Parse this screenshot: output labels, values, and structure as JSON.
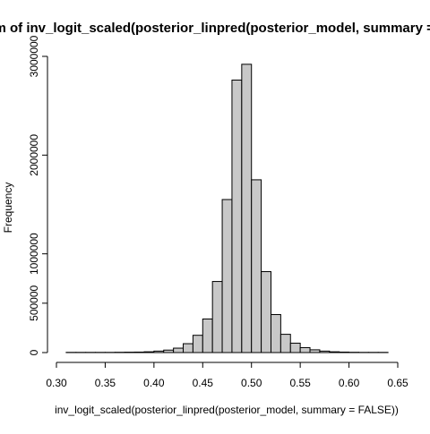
{
  "chart_data": {
    "type": "bar",
    "title": "Histogram of inv_logit_scaled(posterior_linpred(posterior_model, summary = FALSE))",
    "xlabel": "inv_logit_scaled(posterior_linpred(posterior_model, summary = FALSE))",
    "ylabel": "Frequency",
    "xlim": [
      0.3,
      0.65
    ],
    "ylim": [
      0,
      3000000
    ],
    "x_ticks": [
      0.3,
      0.35,
      0.4,
      0.45,
      0.5,
      0.55,
      0.6,
      0.65
    ],
    "x_tick_labels": [
      "0.30",
      "0.35",
      "0.40",
      "0.45",
      "0.50",
      "0.55",
      "0.60",
      "0.65"
    ],
    "y_ticks": [
      0,
      500000,
      1000000,
      2000000,
      3000000
    ],
    "y_tick_labels": [
      "0",
      "500000",
      "1000000",
      "2000000",
      "3000000"
    ],
    "bin_width": 0.01,
    "bins": [
      {
        "x0": 0.31,
        "x1": 0.32,
        "count": 2000
      },
      {
        "x0": 0.32,
        "x1": 0.33,
        "count": 2000
      },
      {
        "x0": 0.33,
        "x1": 0.34,
        "count": 2000
      },
      {
        "x0": 0.34,
        "x1": 0.35,
        "count": 2000
      },
      {
        "x0": 0.35,
        "x1": 0.36,
        "count": 2000
      },
      {
        "x0": 0.36,
        "x1": 0.37,
        "count": 3000
      },
      {
        "x0": 0.37,
        "x1": 0.38,
        "count": 4000
      },
      {
        "x0": 0.38,
        "x1": 0.39,
        "count": 5000
      },
      {
        "x0": 0.39,
        "x1": 0.4,
        "count": 8000
      },
      {
        "x0": 0.4,
        "x1": 0.41,
        "count": 15000
      },
      {
        "x0": 0.41,
        "x1": 0.42,
        "count": 25000
      },
      {
        "x0": 0.42,
        "x1": 0.43,
        "count": 45000
      },
      {
        "x0": 0.43,
        "x1": 0.44,
        "count": 90000
      },
      {
        "x0": 0.44,
        "x1": 0.45,
        "count": 175000
      },
      {
        "x0": 0.45,
        "x1": 0.46,
        "count": 340000
      },
      {
        "x0": 0.46,
        "x1": 0.47,
        "count": 720000
      },
      {
        "x0": 0.47,
        "x1": 0.48,
        "count": 1550000
      },
      {
        "x0": 0.48,
        "x1": 0.49,
        "count": 2760000
      },
      {
        "x0": 0.49,
        "x1": 0.5,
        "count": 2920000
      },
      {
        "x0": 0.5,
        "x1": 0.51,
        "count": 1750000
      },
      {
        "x0": 0.51,
        "x1": 0.52,
        "count": 820000
      },
      {
        "x0": 0.52,
        "x1": 0.53,
        "count": 385000
      },
      {
        "x0": 0.53,
        "x1": 0.54,
        "count": 185000
      },
      {
        "x0": 0.54,
        "x1": 0.55,
        "count": 95000
      },
      {
        "x0": 0.55,
        "x1": 0.56,
        "count": 50000
      },
      {
        "x0": 0.56,
        "x1": 0.57,
        "count": 28000
      },
      {
        "x0": 0.57,
        "x1": 0.58,
        "count": 15000
      },
      {
        "x0": 0.58,
        "x1": 0.59,
        "count": 8000
      },
      {
        "x0": 0.59,
        "x1": 0.6,
        "count": 5000
      },
      {
        "x0": 0.6,
        "x1": 0.61,
        "count": 3000
      },
      {
        "x0": 0.61,
        "x1": 0.62,
        "count": 2000
      },
      {
        "x0": 0.62,
        "x1": 0.63,
        "count": 2000
      },
      {
        "x0": 0.63,
        "x1": 0.64,
        "count": 2000
      }
    ],
    "bar_fill": "#c8c8c8",
    "bar_stroke": "#000000",
    "grid": false,
    "legend": "none"
  }
}
